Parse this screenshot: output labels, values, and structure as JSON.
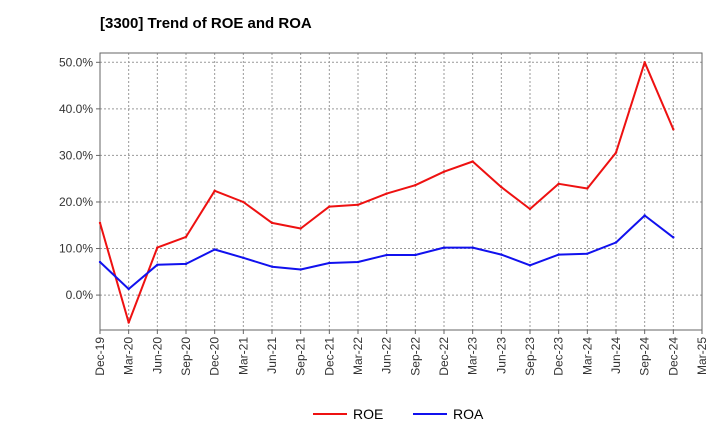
{
  "chart_data": {
    "type": "line",
    "title": "[3300]  Trend of ROE and ROA",
    "xlabel": "",
    "ylabel": "",
    "categories": [
      "Dec-19",
      "Mar-20",
      "Jun-20",
      "Sep-20",
      "Dec-20",
      "Mar-21",
      "Jun-21",
      "Sep-21",
      "Dec-21",
      "Mar-22",
      "Jun-22",
      "Sep-22",
      "Dec-22",
      "Mar-23",
      "Jun-23",
      "Sep-23",
      "Dec-23",
      "Mar-24",
      "Jun-24",
      "Sep-24",
      "Dec-24",
      "Mar-25"
    ],
    "ylim": [
      -7.5,
      52.0
    ],
    "yticks": [
      0,
      10,
      20,
      30,
      40,
      50
    ],
    "ytick_labels": [
      "0.0%",
      "10.0%",
      "20.0%",
      "30.0%",
      "40.0%",
      "50.0%"
    ],
    "grid": true,
    "legend_position": "bottom-center",
    "series": [
      {
        "name": "ROE",
        "color": "#ee1111",
        "values": [
          15.5,
          -5.9,
          10.2,
          12.5,
          22.4,
          20.0,
          15.5,
          14.3,
          19.0,
          19.4,
          21.8,
          23.6,
          26.5,
          28.7,
          23.2,
          18.5,
          23.9,
          22.9,
          30.6,
          50.0,
          35.6,
          null
        ]
      },
      {
        "name": "ROA",
        "color": "#1111ee",
        "values": [
          7.1,
          1.3,
          6.5,
          6.7,
          9.8,
          8.0,
          6.1,
          5.5,
          6.9,
          7.1,
          8.6,
          8.6,
          10.2,
          10.2,
          8.7,
          6.4,
          8.7,
          8.9,
          11.3,
          17.1,
          12.4,
          null
        ]
      }
    ]
  }
}
